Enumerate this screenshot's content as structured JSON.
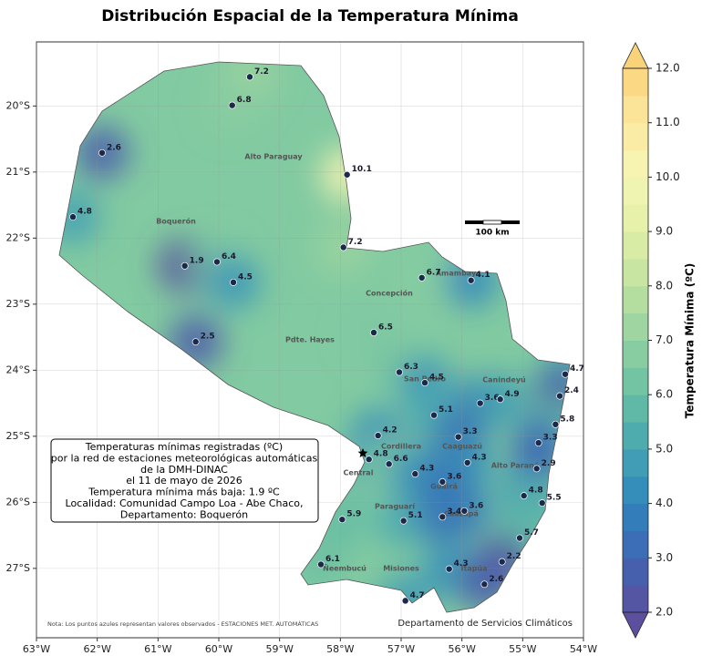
{
  "title": "Distribución Espacial de la Temperatura Mínima",
  "xlim": [
    -63,
    -54
  ],
  "ylim": [
    -28.05,
    -19.03
  ],
  "xticks": [
    {
      "value": -63,
      "label": "63°W"
    },
    {
      "value": -62,
      "label": "62°W"
    },
    {
      "value": -61,
      "label": "61°W"
    },
    {
      "value": -60,
      "label": "60°W"
    },
    {
      "value": -59,
      "label": "59°W"
    },
    {
      "value": -58,
      "label": "58°W"
    },
    {
      "value": -57,
      "label": "57°W"
    },
    {
      "value": -56,
      "label": "56°W"
    },
    {
      "value": -55,
      "label": "55°W"
    },
    {
      "value": -54,
      "label": "54°W"
    }
  ],
  "yticks": [
    {
      "value": -20,
      "label": "20°S"
    },
    {
      "value": -21,
      "label": "21°S"
    },
    {
      "value": -22,
      "label": "22°S"
    },
    {
      "value": -23,
      "label": "23°S"
    },
    {
      "value": -24,
      "label": "24°S"
    },
    {
      "value": -25,
      "label": "25°S"
    },
    {
      "value": -26,
      "label": "26°S"
    },
    {
      "value": -27,
      "label": "27°S"
    }
  ],
  "stations": [
    {
      "lon": -59.49,
      "lat": -19.56,
      "value": 7.2
    },
    {
      "lon": -59.78,
      "lat": -19.99,
      "value": 6.8
    },
    {
      "lon": -61.92,
      "lat": -20.71,
      "value": 2.6
    },
    {
      "lon": -57.89,
      "lat": -21.04,
      "value": 10.1
    },
    {
      "lon": -62.4,
      "lat": -21.68,
      "value": 4.8
    },
    {
      "lon": -57.95,
      "lat": -22.14,
      "value": 7.2
    },
    {
      "lon": -60.56,
      "lat": -22.42,
      "value": 1.9
    },
    {
      "lon": -60.03,
      "lat": -22.36,
      "value": 6.4
    },
    {
      "lon": -59.76,
      "lat": -22.67,
      "value": 4.5
    },
    {
      "lon": -56.66,
      "lat": -22.6,
      "value": 6.7
    },
    {
      "lon": -55.85,
      "lat": -22.64,
      "value": 4.1
    },
    {
      "lon": -60.38,
      "lat": -23.57,
      "value": 2.5
    },
    {
      "lon": -57.45,
      "lat": -23.43,
      "value": 6.5
    },
    {
      "lon": -54.3,
      "lat": -24.06,
      "value": 4.7
    },
    {
      "lon": -57.03,
      "lat": -24.03,
      "value": 6.3
    },
    {
      "lon": -56.61,
      "lat": -24.19,
      "value": 4.5
    },
    {
      "lon": -54.39,
      "lat": -24.39,
      "value": 2.4
    },
    {
      "lon": -55.7,
      "lat": -24.5,
      "value": 3.6
    },
    {
      "lon": -55.37,
      "lat": -24.44,
      "value": 4.9
    },
    {
      "lon": -54.46,
      "lat": -24.82,
      "value": 5.8
    },
    {
      "lon": -56.46,
      "lat": -24.68,
      "value": 5.1
    },
    {
      "lon": -57.38,
      "lat": -24.99,
      "value": 4.2
    },
    {
      "lon": -56.06,
      "lat": -25.01,
      "value": 3.3
    },
    {
      "lon": -54.74,
      "lat": -25.1,
      "value": 3.3
    },
    {
      "lon": -57.53,
      "lat": -25.35,
      "value": 4.8
    },
    {
      "lon": -57.2,
      "lat": -25.42,
      "value": 6.6
    },
    {
      "lon": -55.91,
      "lat": -25.4,
      "value": 4.3
    },
    {
      "lon": -54.77,
      "lat": -25.49,
      "value": 2.9
    },
    {
      "lon": -56.77,
      "lat": -25.57,
      "value": 4.3
    },
    {
      "lon": -56.32,
      "lat": -25.69,
      "value": 3.6
    },
    {
      "lon": -54.98,
      "lat": -25.9,
      "value": 4.8
    },
    {
      "lon": -54.68,
      "lat": -26.01,
      "value": 5.5
    },
    {
      "lon": -57.97,
      "lat": -26.26,
      "value": 5.9
    },
    {
      "lon": -56.96,
      "lat": -26.28,
      "value": 5.1
    },
    {
      "lon": -56.32,
      "lat": -26.22,
      "value": 3.4
    },
    {
      "lon": -55.96,
      "lat": -26.13,
      "value": 3.6
    },
    {
      "lon": -55.05,
      "lat": -26.54,
      "value": 5.7
    },
    {
      "lon": -55.34,
      "lat": -26.9,
      "value": 2.2
    },
    {
      "lon": -58.32,
      "lat": -26.94,
      "value": 6.1
    },
    {
      "lon": -56.21,
      "lat": -27.01,
      "value": 4.3
    },
    {
      "lon": -55.63,
      "lat": -27.24,
      "value": 2.6
    },
    {
      "lon": -56.93,
      "lat": -27.49,
      "value": 4.7
    }
  ],
  "regions": [
    "Alto Paraguay",
    "Boquerón",
    "Concepción",
    "Amambay",
    "Pdte. Hayes",
    "San Pedro",
    "Canindeyú",
    "Cordillera",
    "Caaguazú",
    "Central",
    "Alto Paraná",
    "Guairá",
    "Paraguarí",
    "Caazapá",
    "Ñeembucú",
    "Misiones",
    "Itapúa"
  ],
  "scale_bar": "100 km",
  "info_box": [
    "Temperaturas mínimas registradas (ºC)",
    "por la red de estaciones meteorológicas automáticas",
    "de la DMH-DINAC",
    "el 11 de mayo de 2026",
    "Temperatura mínima más baja: 1.9 ºC",
    "Localidad: Comunidad Campo Loa - Abe Chaco,",
    "Departamento: Boquerón"
  ],
  "note": "Nota: Los puntos azules representan valores observados - ESTACIONES MET. AUTOMÁTICAS",
  "credit": "Departamento de Servicios Climáticos",
  "colorbar": {
    "label": "Temperatura Mínima (ºC)",
    "clim": [
      2,
      12
    ],
    "ticks": [
      {
        "value": 2,
        "label": "2.0"
      },
      {
        "value": 3,
        "label": "3.0"
      },
      {
        "value": 4,
        "label": "4.0"
      },
      {
        "value": 5,
        "label": "5.0"
      },
      {
        "value": 6,
        "label": "6.0"
      },
      {
        "value": 7,
        "label": "7.0"
      },
      {
        "value": 8,
        "label": "8.0"
      },
      {
        "value": 9,
        "label": "9.0"
      },
      {
        "value": 10,
        "label": "10.0"
      },
      {
        "value": 11,
        "label": "11.0"
      },
      {
        "value": 12,
        "label": "12.0"
      }
    ],
    "colors": [
      "#5b4f9e",
      "#3f66b3",
      "#2f85bd",
      "#47a5b2",
      "#68bfa3",
      "#93d1a0",
      "#bfe2a0",
      "#e2efa6",
      "#f5f6b5",
      "#fbe9a0",
      "#f9d27a"
    ]
  }
}
